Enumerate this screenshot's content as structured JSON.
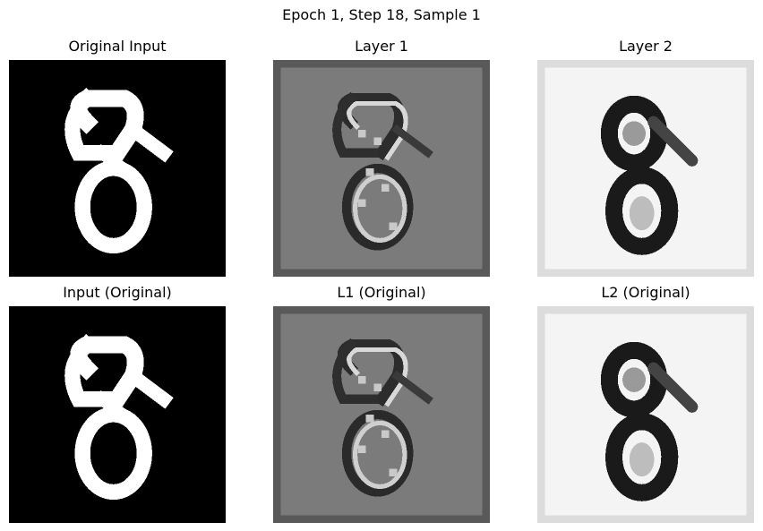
{
  "figure": {
    "suptitle": "Epoch 1, Step 18, Sample 1"
  },
  "panels": [
    {
      "title": "Original Input",
      "style": "input"
    },
    {
      "title": "Layer 1",
      "style": "layer1"
    },
    {
      "title": "Layer 2",
      "style": "layer2"
    },
    {
      "title": "Input (Original)",
      "style": "input"
    },
    {
      "title": "L1 (Original)",
      "style": "layer1"
    },
    {
      "title": "L2 (Original)",
      "style": "layer2"
    }
  ],
  "colors": {
    "input_bg": "#000000",
    "input_stroke": "#ffffff",
    "layer1_bg": "#7b7b7b",
    "layer1_border": "#5a5a5a",
    "layer2_bg": "#f4f4f4",
    "layer2_border": "#dcdcdc",
    "layer2_stroke": "#1a1a1a"
  }
}
